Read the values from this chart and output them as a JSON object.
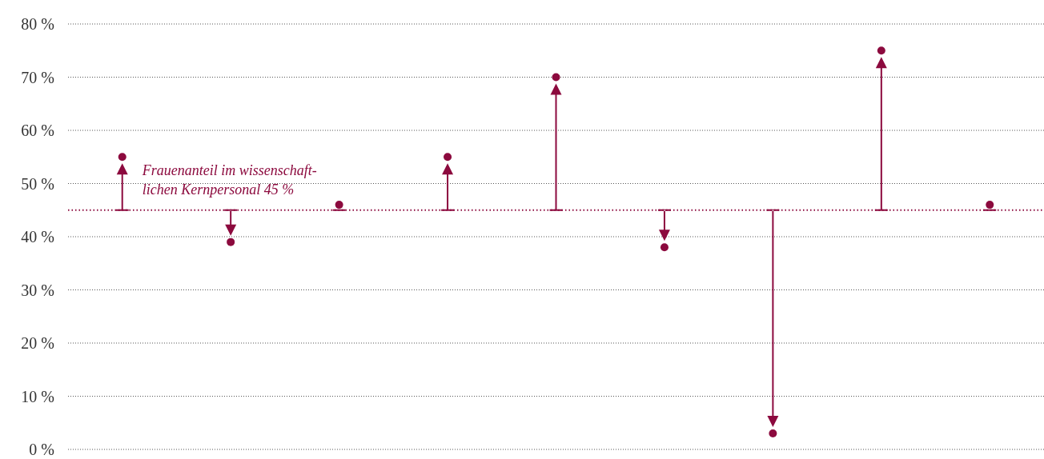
{
  "chart_data": {
    "type": "scatter",
    "categories": [
      null,
      null,
      null,
      null,
      null,
      null,
      null,
      null,
      null
    ],
    "series": [
      {
        "color": "#8c0a3e",
        "values": [
          55,
          39,
          46,
          55,
          70,
          38,
          3,
          75,
          46
        ]
      }
    ],
    "ylim": [
      0,
      80
    ],
    "yticks": [
      {
        "value": 0,
        "label": "0 %"
      },
      {
        "value": 10,
        "label": "10 %"
      },
      {
        "value": 20,
        "label": "20 %"
      },
      {
        "value": 30,
        "label": "30 %"
      },
      {
        "value": 40,
        "label": "40 %"
      },
      {
        "value": 50,
        "label": "50 %"
      },
      {
        "value": 60,
        "label": "60 %"
      },
      {
        "value": 70,
        "label": "70 %"
      },
      {
        "value": 80,
        "label": "80 %"
      }
    ],
    "grid": "y",
    "marker": "circle",
    "tick_labels": "y",
    "ref_lines": [
      {
        "axis": "y",
        "value": 45,
        "label": "Frauenanteil im wissenschaft-\nlichen Kernpersonal 45 %",
        "color": "#8c0a3e",
        "line_style": "dotted"
      }
    ]
  }
}
